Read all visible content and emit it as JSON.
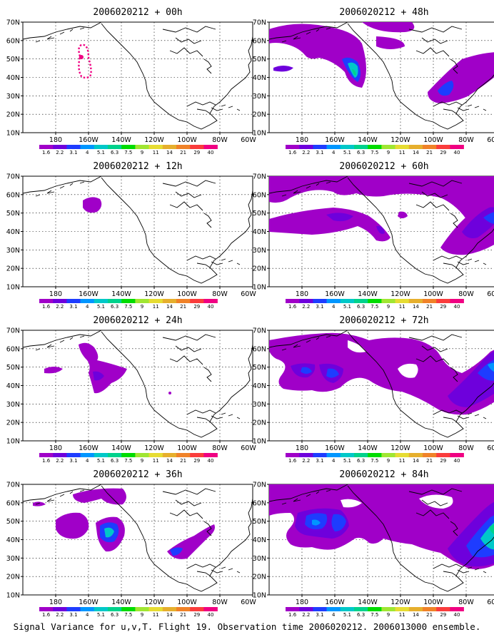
{
  "panels": [
    {
      "title": "2006020212 + 00h"
    },
    {
      "title": "2006020212 + 48h"
    },
    {
      "title": "2006020212 + 12h"
    },
    {
      "title": "2006020212 + 60h"
    },
    {
      "title": "2006020212 + 24h"
    },
    {
      "title": "2006020212 + 72h"
    },
    {
      "title": "2006020212 + 36h"
    },
    {
      "title": "2006020212 + 84h"
    }
  ],
  "lat_labels": [
    "70N",
    "60N",
    "50N",
    "40N",
    "30N",
    "20N",
    "10N"
  ],
  "lon_labels": [
    "180",
    "160W",
    "140W",
    "120W",
    "100W",
    "80W",
    "60W"
  ],
  "colorbar": {
    "labels": [
      "1.6",
      "2.2",
      "3.1",
      "4",
      "5.1",
      "6.3",
      "7.5",
      "9",
      "11",
      "14",
      "21",
      "29",
      "40"
    ],
    "colors": [
      "#a000c8",
      "#6e00dc",
      "#1e3cff",
      "#0096ff",
      "#00c8c8",
      "#00d28c",
      "#00dc00",
      "#a0e632",
      "#e6dc32",
      "#e6af2d",
      "#f08228",
      "#fa3c3c",
      "#f00082"
    ]
  },
  "caption": "Signal Variance for u,v,T. Flight 19. Observation time 2006020212. 2006013000 ensemble."
}
